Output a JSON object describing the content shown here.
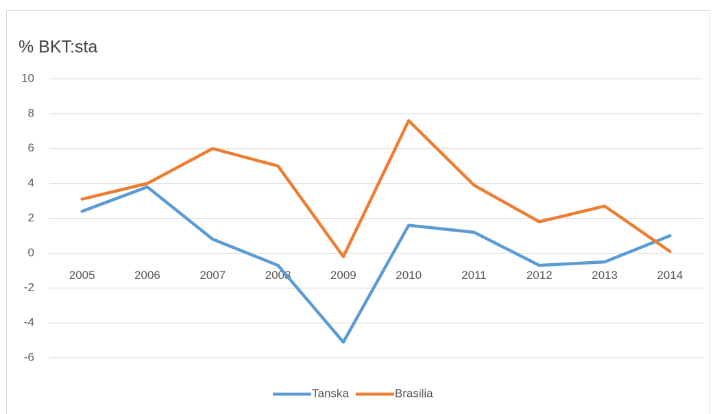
{
  "chart_data": {
    "type": "line",
    "title": "% BKT:sta",
    "categories": [
      "2005",
      "2006",
      "2007",
      "2008",
      "2009",
      "2010",
      "2011",
      "2012",
      "2013",
      "2014"
    ],
    "series": [
      {
        "name": "Tanska",
        "color": "#5b9bd5",
        "values": [
          2.4,
          3.8,
          0.8,
          -0.7,
          -5.1,
          1.6,
          1.2,
          -0.7,
          -0.5,
          1.0
        ]
      },
      {
        "name": "Brasilia",
        "color": "#ed7d31",
        "values": [
          3.1,
          4.0,
          6.0,
          5.0,
          -0.2,
          7.6,
          3.9,
          1.8,
          2.7,
          0.1
        ]
      }
    ],
    "ylim": [
      -6,
      10
    ],
    "yticks": [
      -6,
      -4,
      -2,
      0,
      2,
      4,
      6,
      8,
      10
    ],
    "grid": true,
    "legend": "bottom"
  }
}
